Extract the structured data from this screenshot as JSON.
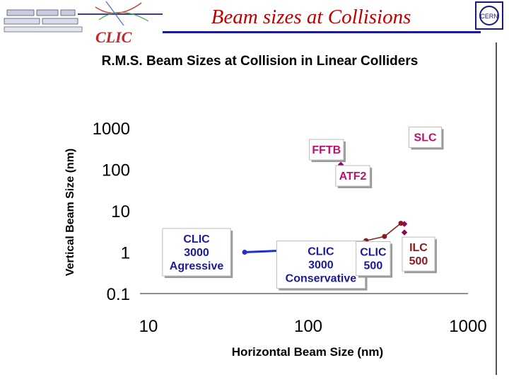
{
  "slide": {
    "title": "Beam sizes at Collisions",
    "logo_text": "CLIC",
    "cern_logo_text": "CERN"
  },
  "chart_data": {
    "type": "scatter",
    "title": "R.M.S. Beam Sizes at Collision in Linear Colliders",
    "xlabel": "Horizontal Beam Size (nm)",
    "ylabel": "Vertical Beam Size (nm)",
    "x_scale": "log",
    "y_scale": "log",
    "xlim": [
      10,
      1000
    ],
    "ylim": [
      0.1,
      1000
    ],
    "x_ticks": [
      "10",
      "100",
      "1000"
    ],
    "y_ticks": [
      "1000",
      "100",
      "10",
      "1",
      "0.1"
    ],
    "grid": false,
    "series": [
      {
        "name": "",
        "color": "#1f2fd0",
        "style": "line",
        "points": [
          [
            40,
            1.0
          ],
          [
            160,
            1.25
          ],
          [
            230,
            1.9
          ]
        ]
      },
      {
        "name": "",
        "color": "#8b1a1a",
        "style": "line",
        "points": [
          [
            230,
            1.9
          ],
          [
            300,
            2.4
          ],
          [
            380,
            5.0
          ]
        ]
      },
      {
        "name": "",
        "color": "#8b0a5a",
        "style": "markers",
        "points": [
          [
            400,
            3.0
          ],
          [
            400,
            4.8
          ],
          [
            480,
            580
          ],
          [
            160,
            130
          ],
          [
            160,
            70
          ]
        ]
      }
    ],
    "annotations": [
      {
        "label": "SLC",
        "lines": [
          "SLC"
        ],
        "color": "#c0106e",
        "x": 540,
        "y": 600
      },
      {
        "label": "FFTB",
        "lines": [
          "FFTB"
        ],
        "color": "#c0106e",
        "x": 130,
        "y": 300
      },
      {
        "label": "ATF2",
        "lines": [
          "ATF2"
        ],
        "color": "#c0106e",
        "x": 190,
        "y": 70
      },
      {
        "label": "CLIC 3000 Agressive",
        "lines": [
          "CLIC",
          "3000",
          "Agressive"
        ],
        "color": "#1a1a9a",
        "x": 20,
        "y": 1.0
      },
      {
        "label": "CLIC 3000 Conservative",
        "lines": [
          "CLIC",
          "3000",
          "Conservative"
        ],
        "color": "#1a1a9a",
        "x": 120,
        "y": 0.5
      },
      {
        "label": "CLIC 500",
        "lines": [
          "CLIC",
          "500"
        ],
        "color": "#1a1a9a",
        "x": 255,
        "y": 0.7
      },
      {
        "label": "ILC 500",
        "lines": [
          "ILC",
          "500"
        ],
        "color": "#8b1a1a",
        "x": 490,
        "y": 0.9
      }
    ]
  }
}
